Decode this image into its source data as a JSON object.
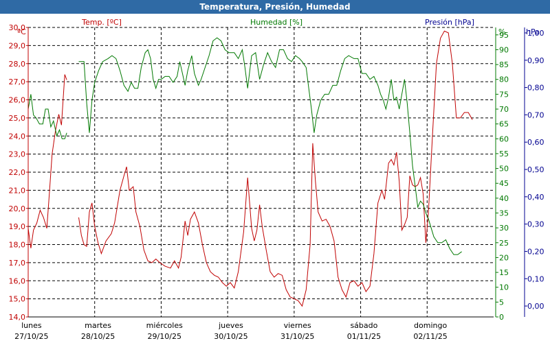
{
  "window": {
    "title": "Temperatura, Presión, Humedad"
  },
  "chart_data": {
    "type": "line",
    "title": "Temperatura, Presión, Humedad",
    "grid": true,
    "colors": {
      "temp": "#c00000",
      "hum": "#007800",
      "pres": "#000090",
      "grid": "#000000"
    },
    "axes": {
      "left": {
        "unit": "ºC",
        "range": [
          14.0,
          30.0
        ],
        "ticks": [
          "14,0",
          "15,0",
          "16,0",
          "17,0",
          "18,0",
          "19,0",
          "20,0",
          "21,0",
          "22,0",
          "23,0",
          "24,0",
          "25,0",
          "26,0",
          "27,0",
          "28,0",
          "29,0",
          "30,0"
        ]
      },
      "right1": {
        "unit": "%",
        "range": [
          0,
          97.5
        ],
        "ticks": [
          "0",
          "5",
          "10",
          "15",
          "20",
          "25",
          "30",
          "35",
          "40",
          "45",
          "50",
          "55",
          "60",
          "65",
          "70",
          "75",
          "80",
          "85",
          "90",
          "95"
        ]
      },
      "right2": {
        "unit": "hPa",
        "range": [
          -0.04,
          1.02
        ],
        "ticks": [
          "0,00",
          "0,10",
          "0,20",
          "0,30",
          "0,40",
          "0,50",
          "0,60",
          "0,70",
          "0,80",
          "0,90",
          "1,00"
        ]
      }
    },
    "x": {
      "range": [
        0,
        7
      ],
      "days": [
        {
          "day": "lunes",
          "date": "27/10/25"
        },
        {
          "day": "martes",
          "date": "28/10/25"
        },
        {
          "day": "miércoles",
          "date": "29/10/25"
        },
        {
          "day": "jueves",
          "date": "30/10/25"
        },
        {
          "day": "viernes",
          "date": "31/10/25"
        },
        {
          "day": "sábado",
          "date": "01/11/25"
        },
        {
          "day": "domingo",
          "date": "02/11/25"
        }
      ]
    },
    "series": [
      {
        "name": "Temp. [ºC]",
        "key": "temp",
        "axis": "left",
        "segments": [
          [
            [
              0,
              18.9
            ],
            [
              0.04,
              17.8
            ],
            [
              0.08,
              18.8
            ],
            [
              0.13,
              19.2
            ],
            [
              0.18,
              19.9
            ],
            [
              0.23,
              19.5
            ],
            [
              0.28,
              18.9
            ],
            [
              0.31,
              20.4
            ],
            [
              0.36,
              23.0
            ],
            [
              0.41,
              24.3
            ],
            [
              0.46,
              25.2
            ],
            [
              0.5,
              24.6
            ],
            [
              0.55,
              27.4
            ],
            [
              0.58,
              27.1
            ]
          ],
          [
            [
              0.76,
              19.5
            ],
            [
              0.8,
              18.5
            ],
            [
              0.84,
              18.0
            ],
            [
              0.88,
              17.9
            ],
            [
              0.92,
              19.8
            ],
            [
              0.96,
              20.3
            ],
            [
              1.0,
              19.0
            ],
            [
              1.05,
              18.1
            ],
            [
              1.1,
              17.5
            ],
            [
              1.17,
              18.2
            ],
            [
              1.25,
              18.6
            ],
            [
              1.3,
              19.2
            ],
            [
              1.38,
              21.0
            ],
            [
              1.44,
              21.8
            ],
            [
              1.48,
              22.3
            ],
            [
              1.52,
              21.0
            ],
            [
              1.58,
              21.2
            ],
            [
              1.62,
              19.8
            ],
            [
              1.68,
              19.0
            ],
            [
              1.74,
              17.7
            ],
            [
              1.8,
              17.1
            ],
            [
              1.86,
              17.0
            ],
            [
              1.92,
              17.2
            ],
            [
              1.98,
              17.0
            ],
            [
              2.06,
              16.8
            ],
            [
              2.14,
              16.7
            ],
            [
              2.2,
              17.1
            ],
            [
              2.26,
              16.7
            ],
            [
              2.3,
              17.3
            ],
            [
              2.36,
              19.3
            ],
            [
              2.4,
              18.5
            ],
            [
              2.44,
              19.4
            ],
            [
              2.5,
              19.8
            ],
            [
              2.56,
              19.2
            ],
            [
              2.62,
              18.0
            ],
            [
              2.68,
              17.0
            ],
            [
              2.74,
              16.5
            ],
            [
              2.8,
              16.3
            ],
            [
              2.86,
              16.2
            ],
            [
              2.92,
              15.9
            ],
            [
              2.98,
              15.7
            ],
            [
              3.04,
              15.9
            ],
            [
              3.1,
              15.6
            ],
            [
              3.16,
              16.5
            ],
            [
              3.24,
              18.7
            ],
            [
              3.3,
              21.7
            ],
            [
              3.36,
              18.9
            ],
            [
              3.4,
              18.2
            ],
            [
              3.44,
              18.8
            ],
            [
              3.48,
              20.2
            ],
            [
              3.52,
              19.0
            ],
            [
              3.58,
              17.7
            ],
            [
              3.64,
              16.5
            ],
            [
              3.7,
              16.2
            ],
            [
              3.76,
              16.4
            ],
            [
              3.82,
              16.3
            ],
            [
              3.88,
              15.5
            ],
            [
              3.94,
              15.1
            ],
            [
              4.0,
              15.0
            ],
            [
              4.06,
              14.9
            ],
            [
              4.12,
              14.6
            ],
            [
              4.18,
              15.5
            ],
            [
              4.24,
              18.0
            ],
            [
              4.28,
              23.6
            ],
            [
              4.32,
              21.5
            ],
            [
              4.36,
              19.8
            ],
            [
              4.42,
              19.3
            ],
            [
              4.48,
              19.4
            ],
            [
              4.54,
              19.0
            ],
            [
              4.6,
              18.2
            ],
            [
              4.66,
              16.2
            ],
            [
              4.72,
              15.5
            ],
            [
              4.78,
              15.1
            ],
            [
              4.84,
              15.9
            ],
            [
              4.9,
              16.0
            ],
            [
              4.96,
              15.7
            ],
            [
              5.02,
              15.9
            ],
            [
              5.08,
              15.4
            ],
            [
              5.14,
              15.7
            ],
            [
              5.2,
              17.5
            ],
            [
              5.26,
              20.3
            ],
            [
              5.32,
              21.0
            ],
            [
              5.36,
              20.5
            ],
            [
              5.42,
              22.5
            ],
            [
              5.46,
              22.7
            ],
            [
              5.5,
              22.4
            ],
            [
              5.54,
              23.1
            ],
            [
              5.58,
              21.5
            ],
            [
              5.62,
              18.8
            ],
            [
              5.66,
              19.1
            ],
            [
              5.7,
              19.5
            ],
            [
              5.74,
              21.8
            ],
            [
              5.78,
              21.3
            ],
            [
              5.82,
              21.2
            ],
            [
              5.86,
              21.3
            ],
            [
              5.9,
              21.7
            ],
            [
              5.94,
              20.8
            ],
            [
              5.98,
              18.1
            ],
            [
              6.02,
              19.8
            ],
            [
              6.08,
              24.0
            ],
            [
              6.14,
              28.0
            ],
            [
              6.2,
              29.4
            ],
            [
              6.26,
              29.8
            ],
            [
              6.32,
              29.7
            ],
            [
              6.38,
              28.0
            ],
            [
              6.44,
              25.0
            ],
            [
              6.5,
              25.0
            ],
            [
              6.56,
              25.3
            ],
            [
              6.62,
              25.3
            ],
            [
              6.68,
              24.9
            ]
          ]
        ]
      },
      {
        "name": "Humedad [%]",
        "key": "hum",
        "axis": "right1",
        "segments": [
          [
            [
              0,
              70
            ],
            [
              0.04,
              75
            ],
            [
              0.08,
              68
            ],
            [
              0.12,
              67
            ],
            [
              0.17,
              65
            ],
            [
              0.22,
              65
            ],
            [
              0.26,
              70
            ],
            [
              0.3,
              70
            ],
            [
              0.34,
              64
            ],
            [
              0.38,
              66
            ],
            [
              0.43,
              61
            ],
            [
              0.47,
              63
            ],
            [
              0.51,
              60
            ],
            [
              0.55,
              60
            ],
            [
              0.58,
              62
            ]
          ],
          [
            [
              0.76,
              86
            ],
            [
              0.8,
              86
            ],
            [
              0.84,
              86
            ],
            [
              0.88,
              72
            ],
            [
              0.92,
              62
            ],
            [
              0.96,
              73
            ],
            [
              1.0,
              79
            ],
            [
              1.06,
              83
            ],
            [
              1.12,
              86
            ],
            [
              1.2,
              87
            ],
            [
              1.26,
              88
            ],
            [
              1.32,
              87
            ],
            [
              1.38,
              83
            ],
            [
              1.44,
              78
            ],
            [
              1.5,
              76
            ],
            [
              1.55,
              79
            ],
            [
              1.6,
              77
            ],
            [
              1.65,
              77
            ],
            [
              1.7,
              84
            ],
            [
              1.76,
              89
            ],
            [
              1.8,
              90
            ],
            [
              1.84,
              87
            ],
            [
              1.88,
              80
            ],
            [
              1.92,
              77
            ],
            [
              1.96,
              80
            ],
            [
              2.0,
              80
            ],
            [
              2.06,
              81
            ],
            [
              2.12,
              81
            ],
            [
              2.18,
              79
            ],
            [
              2.24,
              81
            ],
            [
              2.28,
              86
            ],
            [
              2.32,
              82
            ],
            [
              2.36,
              78
            ],
            [
              2.4,
              83
            ],
            [
              2.46,
              88
            ],
            [
              2.5,
              82
            ],
            [
              2.56,
              78
            ],
            [
              2.6,
              80
            ],
            [
              2.66,
              84
            ],
            [
              2.72,
              88
            ],
            [
              2.78,
              93
            ],
            [
              2.84,
              94
            ],
            [
              2.9,
              93
            ],
            [
              2.96,
              90
            ],
            [
              3.02,
              89
            ],
            [
              3.1,
              89
            ],
            [
              3.16,
              87
            ],
            [
              3.22,
              90
            ],
            [
              3.26,
              84
            ],
            [
              3.3,
              77
            ],
            [
              3.36,
              88
            ],
            [
              3.42,
              89
            ],
            [
              3.48,
              80
            ],
            [
              3.54,
              85
            ],
            [
              3.6,
              89
            ],
            [
              3.66,
              86
            ],
            [
              3.72,
              84
            ],
            [
              3.78,
              90
            ],
            [
              3.84,
              90
            ],
            [
              3.9,
              87
            ],
            [
              3.96,
              86
            ],
            [
              4.02,
              88
            ],
            [
              4.08,
              87
            ],
            [
              4.12,
              86
            ],
            [
              4.18,
              84
            ],
            [
              4.22,
              77
            ],
            [
              4.26,
              70
            ],
            [
              4.3,
              62
            ],
            [
              4.34,
              68
            ],
            [
              4.4,
              73
            ],
            [
              4.46,
              75
            ],
            [
              4.52,
              75
            ],
            [
              4.58,
              78
            ],
            [
              4.64,
              78
            ],
            [
              4.7,
              83
            ],
            [
              4.76,
              87
            ],
            [
              4.82,
              88
            ],
            [
              4.9,
              87
            ],
            [
              4.96,
              87
            ],
            [
              5.02,
              82
            ],
            [
              5.08,
              82
            ],
            [
              5.14,
              80
            ],
            [
              5.2,
              81
            ],
            [
              5.26,
              78
            ],
            [
              5.3,
              75
            ],
            [
              5.34,
              73
            ],
            [
              5.38,
              70
            ],
            [
              5.42,
              74
            ],
            [
              5.46,
              80
            ],
            [
              5.5,
              73
            ],
            [
              5.54,
              74
            ],
            [
              5.58,
              70
            ],
            [
              5.62,
              75
            ],
            [
              5.66,
              80
            ],
            [
              5.7,
              72
            ],
            [
              5.74,
              62
            ],
            [
              5.78,
              51
            ],
            [
              5.82,
              44
            ],
            [
              5.86,
              37
            ],
            [
              5.9,
              39
            ],
            [
              5.94,
              38
            ],
            [
              5.98,
              35
            ],
            [
              6.02,
              33
            ],
            [
              6.06,
              30
            ],
            [
              6.1,
              27
            ],
            [
              6.16,
              25
            ],
            [
              6.22,
              25
            ],
            [
              6.28,
              26
            ],
            [
              6.34,
              23
            ],
            [
              6.4,
              21
            ],
            [
              6.46,
              21
            ],
            [
              6.52,
              22
            ]
          ]
        ]
      },
      {
        "name": "Presión [hPa]",
        "key": "pres",
        "axis": "right2",
        "segments": []
      }
    ]
  }
}
